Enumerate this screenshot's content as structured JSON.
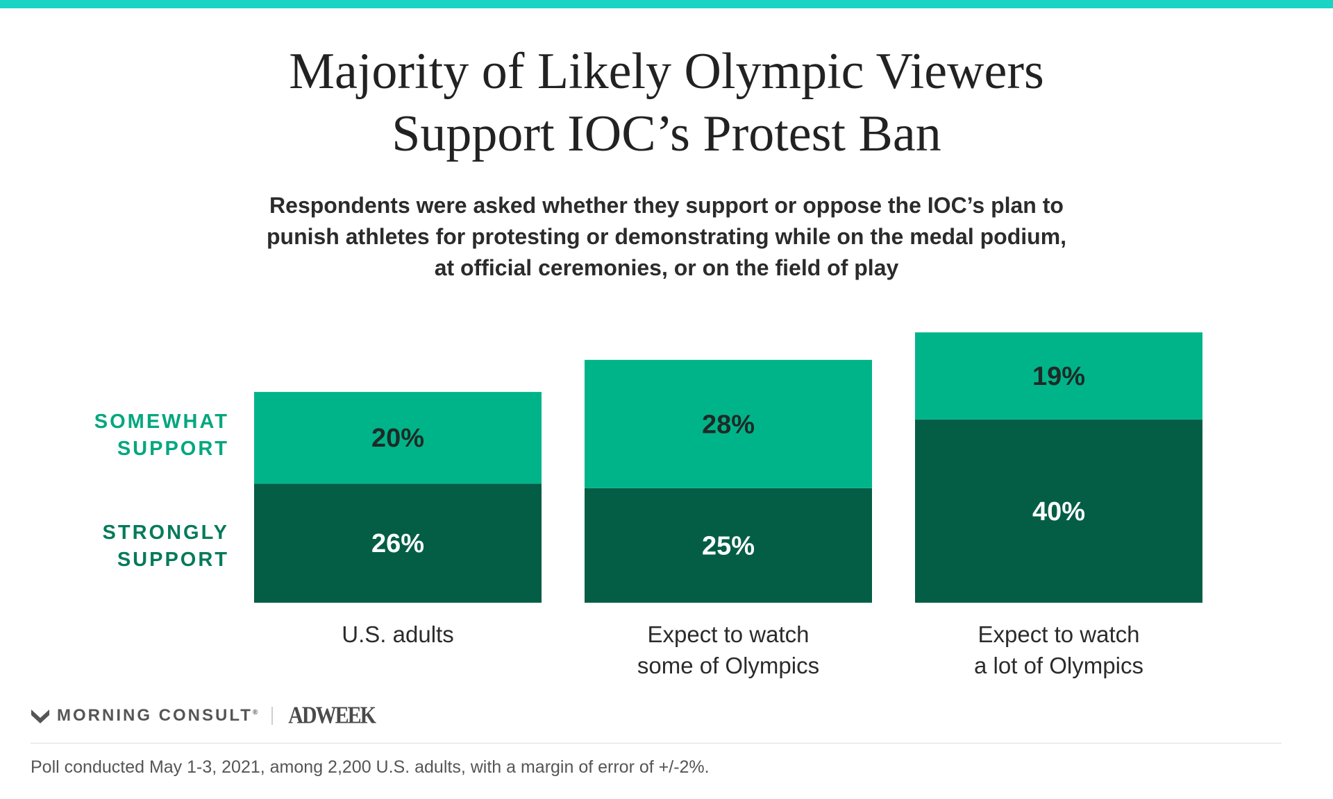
{
  "colors": {
    "accent_bar": "#19d3c5",
    "somewhat": "#00b48a",
    "strongly": "#035e45",
    "somewhat_label": "#00a77f",
    "strongly_label": "#047a5a",
    "value_dark": "#1f2a26",
    "value_light": "#ffffff"
  },
  "title_lines": [
    "Majority of Likely Olympic Viewers",
    "Support IOC’s Protest Ban"
  ],
  "subtitle_lines": [
    "Respondents were asked whether they support or oppose the IOC’s plan to",
    "punish athletes for protesting or demonstrating while on the medal podium,",
    "at official ceremonies, or on the field of play"
  ],
  "chart_data": {
    "type": "bar",
    "stacked": true,
    "categories": [
      [
        "U.S. adults"
      ],
      [
        "Expect to watch",
        "some of Olympics"
      ],
      [
        "Expect to watch",
        "a lot of Olympics"
      ]
    ],
    "series": [
      {
        "name": "STRONGLY SUPPORT",
        "label_lines": [
          "STRONGLY",
          "SUPPORT"
        ],
        "values": [
          26,
          25,
          40
        ],
        "value_labels": [
          "26%",
          "25%",
          "40%"
        ]
      },
      {
        "name": "SOMEWHAT SUPPORT",
        "label_lines": [
          "SOMEWHAT",
          "SUPPORT"
        ],
        "values": [
          20,
          28,
          19
        ],
        "value_labels": [
          "20%",
          "28%",
          "19%"
        ]
      }
    ],
    "legend_placement": "left",
    "grid": false,
    "ylim": [
      0,
      61
    ]
  },
  "branding": {
    "morning_consult": "MORNING CONSULT",
    "trademark": "®",
    "adweek": "ADWEEK"
  },
  "footnote": "Poll conducted May 1-3, 2021, among 2,200 U.S. adults, with a margin of error of +/-2%."
}
